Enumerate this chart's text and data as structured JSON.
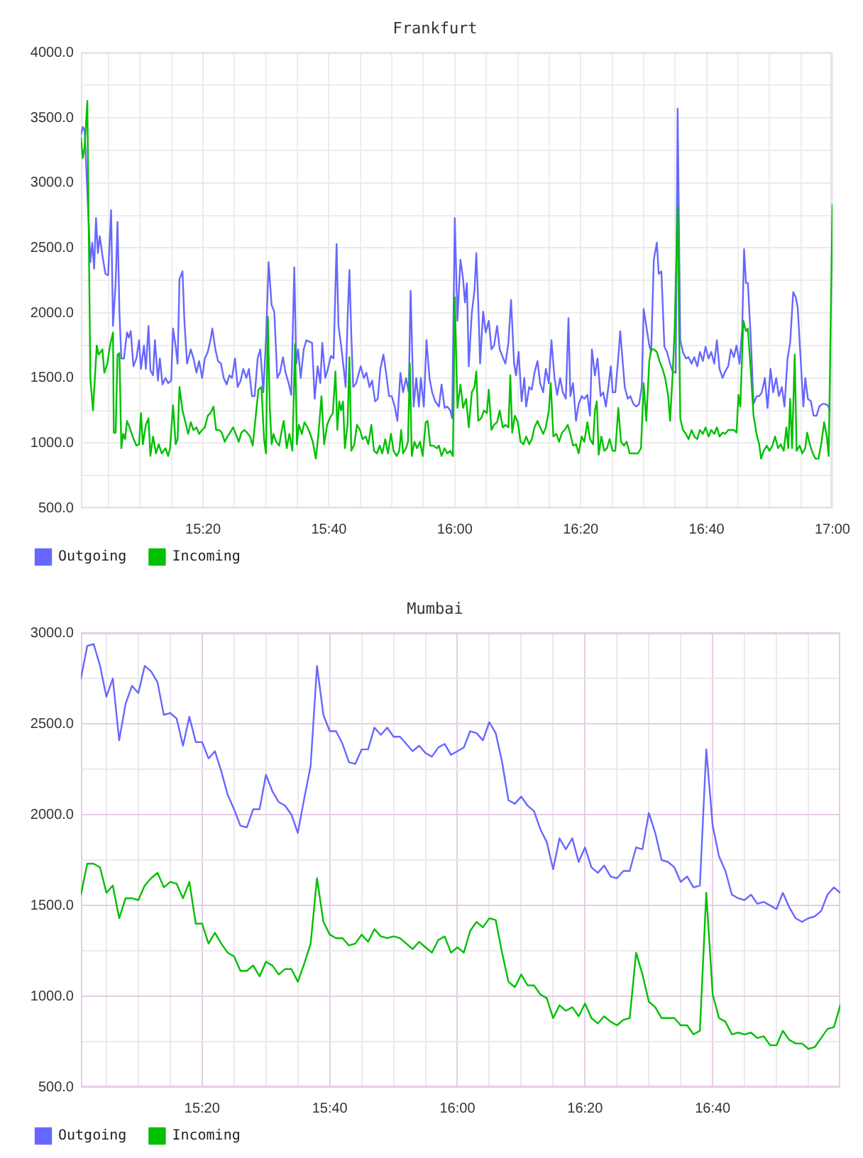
{
  "chart_data": [
    {
      "type": "line",
      "title": "Frankfurt",
      "xlim": [
        15.01,
        17
      ],
      "xticks": [
        {
          "value": 15.0833,
          "label": null
        },
        {
          "value": 15.1667,
          "label": null
        },
        {
          "value": 15.25,
          "label": null
        },
        {
          "value": 15.3333,
          "label": "15:20"
        },
        {
          "value": 15.4167,
          "label": null
        },
        {
          "value": 15.5,
          "label": null
        },
        {
          "value": 15.5833,
          "label": null
        },
        {
          "value": 15.6667,
          "label": "15:40"
        },
        {
          "value": 15.75,
          "label": null
        },
        {
          "value": 15.8333,
          "label": null
        },
        {
          "value": 15.9167,
          "label": null
        },
        {
          "value": 16,
          "label": "16:00"
        },
        {
          "value": 16.0833,
          "label": null
        },
        {
          "value": 16.1667,
          "label": null
        },
        {
          "value": 16.25,
          "label": null
        },
        {
          "value": 16.3333,
          "label": "16:20"
        },
        {
          "value": 16.4167,
          "label": null
        },
        {
          "value": 16.5,
          "label": null
        },
        {
          "value": 16.5833,
          "label": null
        },
        {
          "value": 16.6667,
          "label": "16:40"
        },
        {
          "value": 16.75,
          "label": null
        },
        {
          "value": 16.8333,
          "label": null
        },
        {
          "value": 16.9167,
          "label": null
        },
        {
          "value": 17,
          "label": "17:00"
        }
      ],
      "ylim": [
        500,
        4000
      ],
      "yticks": [
        {
          "value": 500,
          "label": "500.0"
        },
        {
          "value": 750,
          "label": null
        },
        {
          "value": 1000,
          "label": "1000.0"
        },
        {
          "value": 1250,
          "label": null
        },
        {
          "value": 1500,
          "label": "1500.0"
        },
        {
          "value": 1750,
          "label": null
        },
        {
          "value": 2000,
          "label": "2000.0"
        },
        {
          "value": 2250,
          "label": null
        },
        {
          "value": 2500,
          "label": "2500.0"
        },
        {
          "value": 2750,
          "label": null
        },
        {
          "value": 3000,
          "label": "3000.0"
        },
        {
          "value": 3250,
          "label": null
        },
        {
          "value": 3500,
          "label": "3500.0"
        },
        {
          "value": 3750,
          "label": null
        },
        {
          "value": 4000,
          "label": "4000.0"
        }
      ],
      "grid": true,
      "legend": "bottom left",
      "marker": "none",
      "series": [
        {
          "name": "Outgoing",
          "color": "#6767ff",
          "x": [
            15.01,
            15.015,
            15.02,
            15.035,
            15.04,
            15.045,
            15.05,
            15.055,
            15.06,
            15.067,
            15.075,
            15.082,
            15.09,
            15.095,
            15.102,
            15.107,
            15.112,
            15.117,
            15.124,
            15.132,
            15.137,
            15.142,
            15.149,
            15.157,
            15.164,
            15.169,
            15.177,
            15.182,
            15.189,
            15.194,
            15.201,
            15.206,
            15.214,
            15.219,
            15.226,
            15.234,
            15.241,
            15.249,
            15.254,
            15.261,
            15.266,
            15.271,
            15.279,
            15.284,
            15.291,
            15.301,
            15.308,
            15.316,
            15.323,
            15.331,
            15.338,
            15.346,
            15.353,
            15.358,
            15.366,
            15.373,
            15.381,
            15.388,
            15.396,
            15.403,
            15.41,
            15.418,
            15.425,
            15.433,
            15.44,
            15.448,
            15.455,
            15.463,
            15.47,
            15.478,
            15.485,
            15.493,
            15.5,
            15.507,
            15.515,
            15.522,
            15.53,
            15.537,
            15.545,
            15.552,
            15.56,
            15.567,
            15.575,
            15.58,
            15.585,
            15.592,
            15.6,
            15.607,
            15.614,
            15.622,
            15.629,
            15.637,
            15.644,
            15.649,
            15.657,
            15.664,
            15.672,
            15.679,
            15.687,
            15.692,
            15.699,
            15.706,
            15.711,
            15.716,
            15.721,
            15.726,
            15.731,
            15.739,
            15.746,
            15.751,
            15.759,
            15.766,
            15.774,
            15.781,
            15.789,
            15.796,
            15.803,
            15.811,
            15.818,
            15.826,
            15.833,
            15.841,
            15.848,
            15.856,
            15.863,
            15.871,
            15.878,
            15.883,
            15.891,
            15.898,
            15.905,
            15.91,
            15.918,
            15.925,
            15.933,
            15.94,
            15.948,
            15.958,
            15.965,
            15.973,
            15.98,
            15.988,
            15.993,
            16.0,
            16.007,
            16.015,
            16.022,
            16.027,
            16.032,
            16.037,
            16.045,
            16.052,
            16.057,
            16.062,
            16.067,
            16.075,
            16.082,
            16.09,
            16.097,
            16.104,
            16.112,
            16.119,
            16.127,
            16.134,
            16.142,
            16.149,
            16.157,
            16.162,
            16.169,
            16.177,
            16.184,
            16.189,
            16.197,
            16.204,
            16.211,
            16.219,
            16.226,
            16.234,
            16.241,
            16.249,
            16.256,
            16.264,
            16.271,
            16.279,
            16.286,
            16.294,
            16.301,
            16.306,
            16.313,
            16.321,
            16.328,
            16.336,
            16.343,
            16.351,
            16.358,
            16.363,
            16.371,
            16.378,
            16.386,
            16.393,
            16.4,
            16.408,
            16.413,
            16.418,
            16.425,
            16.433,
            16.438,
            16.445,
            16.45,
            16.458,
            16.465,
            16.473,
            16.48,
            16.488,
            16.495,
            16.5,
            16.507,
            16.515,
            16.52,
            16.527,
            16.535,
            16.54,
            16.547,
            16.555,
            16.562,
            16.57,
            16.577,
            16.585,
            16.59,
            16.597,
            16.604,
            16.612,
            16.619,
            16.627,
            16.634,
            16.642,
            16.649,
            16.657,
            16.664,
            16.672,
            16.679,
            16.687,
            16.694,
            16.701,
            16.709,
            16.716,
            16.724,
            16.731,
            16.739,
            16.746,
            16.754,
            16.761,
            16.766,
            16.771,
            16.776,
            16.784,
            16.791,
            16.799,
            16.806,
            16.813,
            16.821,
            16.828,
            16.836,
            16.843,
            16.851,
            16.858,
            16.866,
            16.873,
            16.881,
            16.888,
            16.896,
            16.903,
            16.908,
            16.915,
            16.923,
            16.928,
            16.935,
            16.943,
            16.95,
            16.958,
            16.965,
            16.973,
            16.98,
            16.988,
            16.993
          ],
          "values": [
            3370,
            3430,
            3400,
            2390,
            2540,
            2340,
            2730,
            2460,
            2590,
            2440,
            2300,
            2290,
            2790,
            1900,
            2230,
            2700,
            2010,
            1650,
            1650,
            1850,
            1810,
            1860,
            1590,
            1650,
            1790,
            1570,
            1750,
            1570,
            1900,
            1560,
            1520,
            1790,
            1480,
            1650,
            1450,
            1500,
            1460,
            1480,
            1880,
            1740,
            1610,
            2260,
            2320,
            1940,
            1610,
            1720,
            1650,
            1540,
            1630,
            1500,
            1650,
            1700,
            1790,
            1880,
            1720,
            1630,
            1610,
            1500,
            1450,
            1520,
            1500,
            1650,
            1430,
            1480,
            1570,
            1500,
            1570,
            1360,
            1360,
            1650,
            1720,
            1390,
            1790,
            2390,
            2060,
            2010,
            1500,
            1540,
            1660,
            1540,
            1460,
            1370,
            2350,
            1610,
            1720,
            1500,
            1720,
            1790,
            1780,
            1770,
            1340,
            1590,
            1460,
            1770,
            1500,
            1570,
            1670,
            1650,
            2530,
            1900,
            1750,
            1570,
            1430,
            1940,
            2330,
            1830,
            1430,
            1460,
            1540,
            1590,
            1500,
            1540,
            1430,
            1480,
            1320,
            1340,
            1570,
            1680,
            1540,
            1360,
            1360,
            1280,
            1170,
            1540,
            1390,
            1500,
            1390,
            2170,
            1280,
            1500,
            1280,
            1500,
            1280,
            1790,
            1500,
            1390,
            1320,
            1280,
            1450,
            1270,
            1280,
            1250,
            1190,
            2730,
            1940,
            2410,
            2260,
            2080,
            2230,
            1590,
            2000,
            2170,
            2460,
            2080,
            1610,
            2010,
            1850,
            1940,
            1720,
            1750,
            1900,
            1720,
            1660,
            1610,
            1770,
            2100,
            1610,
            1520,
            1700,
            1320,
            1500,
            1280,
            1430,
            1410,
            1540,
            1630,
            1460,
            1390,
            1570,
            1460,
            1790,
            1500,
            1370,
            1500,
            1390,
            1340,
            1960,
            1360,
            1460,
            1170,
            1300,
            1360,
            1340,
            1370,
            1210,
            1720,
            1520,
            1650,
            1360,
            1390,
            1280,
            1460,
            1590,
            1390,
            1390,
            1660,
            1860,
            1610,
            1430,
            1340,
            1360,
            1300,
            1280,
            1300,
            1430,
            2030,
            1900,
            1750,
            1700,
            2410,
            2540,
            2300,
            2320,
            1740,
            1700,
            1610,
            1550,
            1540,
            3570,
            1790,
            1700,
            1650,
            1660,
            1610,
            1660,
            1590,
            1700,
            1630,
            1740,
            1650,
            1700,
            1610,
            1790,
            1570,
            1500,
            1550,
            1590,
            1720,
            1660,
            1750,
            1610,
            1880,
            2490,
            2230,
            2230,
            1790,
            1300,
            1360,
            1360,
            1390,
            1500,
            1270,
            1570,
            1390,
            1500,
            1360,
            1430,
            1280,
            1650,
            1770,
            2160,
            2120,
            2040,
            1680,
            1280,
            1500,
            1340,
            1320,
            1210,
            1210,
            1280,
            1300,
            1300,
            1290,
            1250
          ]
        },
        {
          "name": "Incoming",
          "color": "#00c000",
          "x": [
            15.01,
            15.015,
            15.02,
            15.027,
            15.035,
            15.042,
            15.052,
            15.057,
            15.062,
            15.067,
            15.072,
            15.08,
            15.087,
            15.095,
            15.097,
            15.102,
            15.107,
            15.112,
            15.117,
            15.122,
            15.127,
            15.132,
            15.139,
            15.147,
            15.157,
            15.164,
            15.169,
            15.174,
            15.182,
            15.189,
            15.194,
            15.201,
            15.209,
            15.216,
            15.224,
            15.234,
            15.241,
            15.246,
            15.254,
            15.261,
            15.266,
            15.271,
            15.279,
            15.286,
            15.294,
            15.301,
            15.308,
            15.316,
            15.323,
            15.331,
            15.338,
            15.346,
            15.353,
            15.361,
            15.368,
            15.376,
            15.383,
            15.391,
            15.398,
            15.405,
            15.413,
            15.42,
            15.428,
            15.435,
            15.443,
            15.45,
            15.458,
            15.465,
            15.473,
            15.48,
            15.488,
            15.495,
            15.5,
            15.505,
            15.51,
            15.515,
            15.52,
            15.527,
            15.535,
            15.542,
            15.547,
            15.555,
            15.562,
            15.57,
            15.577,
            15.582,
            15.587,
            15.595,
            15.602,
            15.61,
            15.617,
            15.624,
            15.632,
            15.639,
            15.647,
            15.654,
            15.662,
            15.669,
            15.677,
            15.684,
            15.689,
            15.694,
            15.699,
            15.704,
            15.709,
            15.716,
            15.721,
            15.726,
            15.734,
            15.741,
            15.749,
            15.756,
            15.764,
            15.771,
            15.779,
            15.786,
            15.794,
            15.801,
            15.808,
            15.816,
            15.823,
            15.831,
            15.838,
            15.846,
            15.853,
            15.858,
            15.863,
            15.871,
            15.876,
            15.881,
            15.886,
            15.893,
            15.9,
            15.908,
            15.915,
            15.923,
            15.928,
            15.935,
            15.943,
            15.953,
            15.958,
            15.965,
            15.973,
            15.98,
            15.988,
            15.995,
            16.0,
            16.007,
            16.015,
            16.022,
            16.03,
            16.037,
            16.045,
            16.052,
            16.057,
            16.062,
            16.07,
            16.077,
            16.085,
            16.09,
            16.097,
            16.104,
            16.112,
            16.119,
            16.127,
            16.134,
            16.142,
            16.147,
            16.152,
            16.159,
            16.167,
            16.174,
            16.182,
            16.189,
            16.197,
            16.204,
            16.211,
            16.219,
            16.226,
            16.234,
            16.241,
            16.249,
            16.254,
            16.261,
            16.269,
            16.276,
            16.284,
            16.291,
            16.299,
            16.306,
            16.313,
            16.321,
            16.328,
            16.336,
            16.343,
            16.351,
            16.358,
            16.366,
            16.371,
            16.376,
            16.381,
            16.388,
            16.396,
            16.403,
            16.41,
            16.418,
            16.425,
            16.433,
            16.44,
            16.448,
            16.455,
            16.463,
            16.47,
            16.485,
            16.493,
            16.5,
            16.507,
            16.515,
            16.52,
            16.527,
            16.535,
            16.542,
            16.55,
            16.557,
            16.565,
            16.57,
            16.577,
            16.582,
            16.59,
            16.597,
            16.604,
            16.612,
            16.619,
            16.627,
            16.634,
            16.642,
            16.649,
            16.657,
            16.664,
            16.672,
            16.679,
            16.687,
            16.694,
            16.701,
            16.709,
            16.716,
            16.724,
            16.731,
            16.739,
            16.746,
            16.751,
            16.756,
            16.764,
            16.771,
            16.776,
            16.784,
            16.791,
            16.799,
            16.806,
            16.811,
            16.818,
            16.826,
            16.833,
            16.841,
            16.848,
            16.856,
            16.863,
            16.871,
            16.878,
            16.883,
            16.888,
            16.893,
            16.9,
            16.905,
            16.913,
            16.92,
            16.928,
            16.933,
            16.94,
            16.948,
            16.955,
            16.963,
            16.97,
            16.978,
            16.985,
            16.99,
            17.0
          ],
          "values": [
            3350,
            3190,
            3280,
            3630,
            1500,
            1250,
            1750,
            1680,
            1700,
            1720,
            1540,
            1610,
            1750,
            1850,
            1080,
            1080,
            1680,
            1690,
            960,
            1070,
            1030,
            1170,
            1120,
            1050,
            980,
            990,
            1230,
            990,
            1140,
            1190,
            900,
            1050,
            920,
            990,
            920,
            960,
            900,
            960,
            1290,
            990,
            1030,
            1430,
            1250,
            1170,
            1070,
            1160,
            1100,
            1120,
            1070,
            1100,
            1120,
            1210,
            1230,
            1280,
            1100,
            1100,
            1080,
            1010,
            1050,
            1080,
            1120,
            1070,
            1010,
            1080,
            1100,
            1080,
            1050,
            980,
            1210,
            1410,
            1430,
            1030,
            920,
            1970,
            1280,
            990,
            1070,
            1010,
            980,
            1100,
            1170,
            960,
            1070,
            940,
            1760,
            990,
            1140,
            1070,
            1160,
            1120,
            1070,
            1010,
            880,
            1070,
            1360,
            990,
            1140,
            1190,
            1230,
            1550,
            1100,
            1320,
            1250,
            1320,
            960,
            1140,
            1660,
            940,
            990,
            1140,
            1100,
            1030,
            1050,
            990,
            1140,
            940,
            920,
            980,
            920,
            1030,
            920,
            1070,
            940,
            900,
            940,
            1100,
            920,
            960,
            1010,
            1610,
            900,
            1010,
            960,
            1010,
            900,
            1160,
            1170,
            980,
            980,
            960,
            980,
            900,
            960,
            920,
            940,
            900,
            2120,
            1270,
            1450,
            1270,
            1340,
            1120,
            1390,
            1430,
            1550,
            1170,
            1190,
            1250,
            1230,
            1410,
            1100,
            1140,
            1160,
            1250,
            1120,
            1140,
            1120,
            1520,
            1080,
            1210,
            1160,
            1010,
            990,
            1050,
            990,
            1030,
            1120,
            1170,
            1120,
            1070,
            1120,
            1250,
            1460,
            1050,
            1070,
            1010,
            1080,
            1100,
            1140,
            1070,
            980,
            990,
            920,
            1050,
            1010,
            1160,
            1030,
            990,
            1250,
            1320,
            910,
            1050,
            940,
            960,
            1030,
            940,
            940,
            1270,
            1010,
            980,
            1010,
            920,
            920,
            920,
            960,
            1460,
            1170,
            1630,
            1720,
            1720,
            1700,
            1630,
            1570,
            1500,
            1360,
            1170,
            1540,
            1860,
            2820,
            1190,
            1100,
            1070,
            1030,
            1100,
            1050,
            1030,
            1100,
            1070,
            1120,
            1050,
            1100,
            1070,
            1120,
            1050,
            1080,
            1070,
            1100,
            1100,
            1100,
            1080,
            1370,
            1280,
            1940,
            1860,
            1880,
            1540,
            1210,
            1070,
            990,
            880,
            940,
            980,
            940,
            980,
            1050,
            960,
            990,
            940,
            1120,
            960,
            1340,
            960,
            1680,
            940,
            980,
            920,
            960,
            1080,
            990,
            920,
            880,
            880,
            990,
            1160,
            1050,
            900,
            2830
          ]
        }
      ]
    },
    {
      "type": "line",
      "title": "Mumbai",
      "xlim": [
        15.0167,
        17
      ],
      "xticks": [
        {
          "value": 15.0833,
          "label": null
        },
        {
          "value": 15.1667,
          "label": null
        },
        {
          "value": 15.25,
          "label": null
        },
        {
          "value": 15.3333,
          "label": "15:20"
        },
        {
          "value": 15.4167,
          "label": null
        },
        {
          "value": 15.5,
          "label": null
        },
        {
          "value": 15.5833,
          "label": null
        },
        {
          "value": 15.6667,
          "label": "15:40"
        },
        {
          "value": 15.75,
          "label": null
        },
        {
          "value": 15.8333,
          "label": null
        },
        {
          "value": 15.9167,
          "label": null
        },
        {
          "value": 16,
          "label": "16:00"
        },
        {
          "value": 16.0833,
          "label": null
        },
        {
          "value": 16.1667,
          "label": null
        },
        {
          "value": 16.25,
          "label": null
        },
        {
          "value": 16.3333,
          "label": "16:20"
        },
        {
          "value": 16.4167,
          "label": null
        },
        {
          "value": 16.5,
          "label": null
        },
        {
          "value": 16.5833,
          "label": null
        },
        {
          "value": 16.6667,
          "label": "16:40"
        },
        {
          "value": 16.75,
          "label": null
        },
        {
          "value": 16.8333,
          "label": null
        },
        {
          "value": 16.9167,
          "label": null
        }
      ],
      "ylim": [
        500,
        3000
      ],
      "yticks": [
        {
          "value": 500,
          "label": "500.0"
        },
        {
          "value": 750,
          "label": null
        },
        {
          "value": 1000,
          "label": "1000.0"
        },
        {
          "value": 1250,
          "label": null
        },
        {
          "value": 1500,
          "label": "1500.0"
        },
        {
          "value": 1750,
          "label": null
        },
        {
          "value": 2000,
          "label": "2000.0"
        },
        {
          "value": 2250,
          "label": null
        },
        {
          "value": 2500,
          "label": "2500.0"
        },
        {
          "value": 2750,
          "label": null
        },
        {
          "value": 3000,
          "label": "3000.0"
        }
      ],
      "grid": true,
      "legend": "bottom left",
      "marker": "none",
      "x": [
        15.0167,
        15.0333,
        15.05,
        15.0667,
        15.0833,
        15.1,
        15.1167,
        15.1333,
        15.15,
        15.1667,
        15.1833,
        15.2,
        15.2167,
        15.2333,
        15.25,
        15.2667,
        15.2833,
        15.3,
        15.3167,
        15.3333,
        15.35,
        15.3667,
        15.3833,
        15.4,
        15.4167,
        15.4333,
        15.45,
        15.4667,
        15.4833,
        15.5,
        15.5167,
        15.5333,
        15.55,
        15.5667,
        15.5833,
        15.6,
        15.6167,
        15.6333,
        15.65,
        15.6667,
        15.6833,
        15.7,
        15.7167,
        15.7333,
        15.75,
        15.7667,
        15.7833,
        15.8,
        15.8167,
        15.8333,
        15.85,
        15.8667,
        15.8833,
        15.9,
        15.9167,
        15.9333,
        15.95,
        15.9667,
        15.9833,
        16,
        16.0167,
        16.0333,
        16.05,
        16.0667,
        16.0833,
        16.1,
        16.1167,
        16.1333,
        16.15,
        16.1667,
        16.1833,
        16.2,
        16.2167,
        16.2333,
        16.25,
        16.2667,
        16.2833,
        16.3,
        16.3167,
        16.3333,
        16.35,
        16.3667,
        16.3833,
        16.4,
        16.4167,
        16.4333,
        16.45,
        16.4667,
        16.4833,
        16.5,
        16.5167,
        16.5333,
        16.55,
        16.5667,
        16.5833,
        16.6,
        16.6167,
        16.6333,
        16.65,
        16.6667,
        16.6833,
        16.7,
        16.7167,
        16.7333,
        16.75,
        16.7667,
        16.7833,
        16.8,
        16.8167,
        16.8333,
        16.85,
        16.8667,
        16.8833,
        16.9,
        16.9167,
        16.9333,
        16.95,
        16.9667,
        16.9833,
        17
      ],
      "series": [
        {
          "name": "Outgoing",
          "color": "#6767ff",
          "values": [
            2750,
            2930,
            2940,
            2820,
            2650,
            2750,
            2410,
            2610,
            2710,
            2670,
            2820,
            2790,
            2730,
            2550,
            2560,
            2530,
            2380,
            2540,
            2400,
            2400,
            2310,
            2350,
            2240,
            2110,
            2030,
            1940,
            1930,
            2030,
            2030,
            2220,
            2130,
            2070,
            2050,
            2000,
            1900,
            2090,
            2270,
            2820,
            2550,
            2460,
            2460,
            2390,
            2290,
            2280,
            2360,
            2360,
            2480,
            2440,
            2480,
            2430,
            2430,
            2390,
            2350,
            2380,
            2340,
            2320,
            2370,
            2390,
            2330,
            2350,
            2370,
            2460,
            2450,
            2410,
            2510,
            2450,
            2290,
            2080,
            2060,
            2100,
            2050,
            2020,
            1920,
            1850,
            1700,
            1870,
            1810,
            1870,
            1740,
            1820,
            1710,
            1680,
            1720,
            1660,
            1650,
            1690,
            1690,
            1820,
            1810,
            2010,
            1900,
            1750,
            1740,
            1710,
            1630,
            1660,
            1600,
            1610,
            2360,
            1940,
            1770,
            1690,
            1560,
            1540,
            1530,
            1560,
            1510,
            1520,
            1500,
            1480,
            1570,
            1490,
            1430,
            1410,
            1430,
            1440,
            1470,
            1560,
            1600,
            1570
          ]
        },
        {
          "name": "Incoming",
          "color": "#00c000",
          "values": [
            1560,
            1730,
            1730,
            1710,
            1570,
            1610,
            1430,
            1540,
            1540,
            1530,
            1610,
            1650,
            1680,
            1600,
            1630,
            1620,
            1540,
            1630,
            1400,
            1400,
            1290,
            1350,
            1290,
            1240,
            1220,
            1140,
            1140,
            1170,
            1110,
            1190,
            1170,
            1120,
            1150,
            1150,
            1080,
            1180,
            1290,
            1650,
            1410,
            1340,
            1320,
            1320,
            1280,
            1290,
            1340,
            1300,
            1370,
            1330,
            1320,
            1330,
            1320,
            1290,
            1260,
            1300,
            1270,
            1240,
            1310,
            1330,
            1240,
            1270,
            1240,
            1360,
            1410,
            1380,
            1430,
            1420,
            1240,
            1080,
            1050,
            1120,
            1060,
            1060,
            1010,
            990,
            880,
            950,
            920,
            940,
            890,
            960,
            880,
            850,
            890,
            860,
            840,
            870,
            880,
            1240,
            1120,
            970,
            940,
            880,
            880,
            880,
            840,
            840,
            790,
            810,
            1570,
            1010,
            880,
            860,
            790,
            800,
            790,
            800,
            770,
            780,
            730,
            730,
            810,
            760,
            740,
            740,
            710,
            720,
            770,
            820,
            830,
            950
          ]
        }
      ]
    }
  ]
}
